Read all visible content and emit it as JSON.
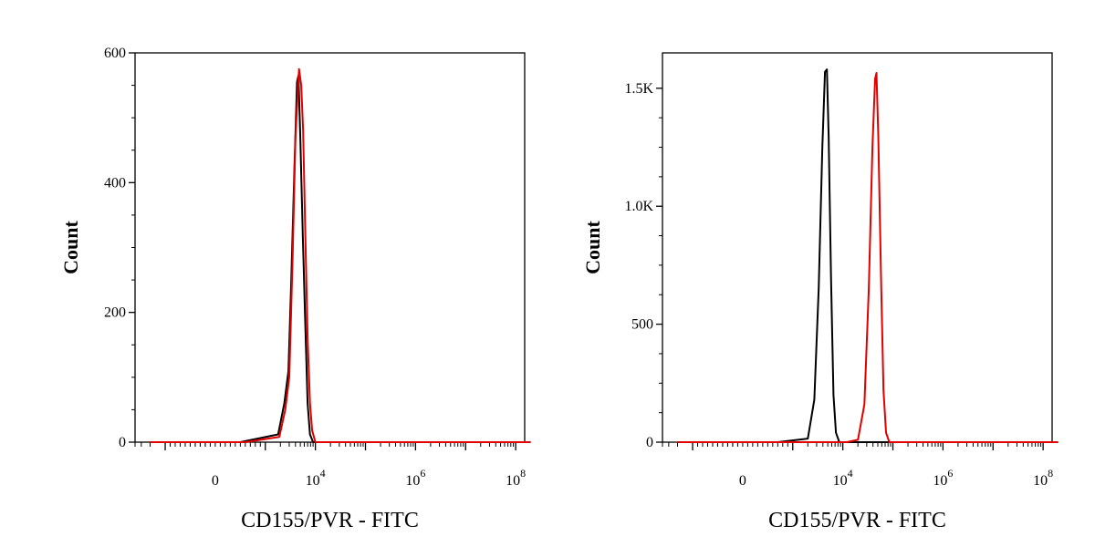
{
  "chart_data": [
    {
      "type": "line",
      "title": "",
      "xlabel": "CD155/PVR - FITC",
      "ylabel": "Count",
      "xscale": "biexponential",
      "xticks": [
        {
          "base": "0",
          "exp": ""
        },
        {
          "base": "10",
          "exp": "4"
        },
        {
          "base": "10",
          "exp": "6"
        },
        {
          "base": "10",
          "exp": "8"
        }
      ],
      "yticks": [
        "0",
        "200",
        "400",
        "600"
      ],
      "yticks_values": [
        0,
        200,
        400,
        600
      ],
      "ylim": [
        0,
        600
      ],
      "grid": false,
      "legend": "none",
      "series": [
        {
          "color": "#000000",
          "points": [
            [
              -2000,
              0
            ],
            [
              500,
              0
            ],
            [
              1800,
              12
            ],
            [
              2400,
              60
            ],
            [
              2900,
              110
            ],
            [
              3300,
              250
            ],
            [
              3800,
              420
            ],
            [
              4300,
              555
            ],
            [
              4600,
              565
            ],
            [
              5000,
              470
            ],
            [
              5600,
              320
            ],
            [
              6300,
              180
            ],
            [
              7000,
              60
            ],
            [
              7800,
              12
            ],
            [
              9000,
              0
            ],
            [
              10000000,
              0
            ],
            [
              200000000,
              0
            ]
          ]
        },
        {
          "color": "#e00000",
          "points": [
            [
              -2000,
              0
            ],
            [
              600,
              0
            ],
            [
              1900,
              8
            ],
            [
              2500,
              50
            ],
            [
              3000,
              100
            ],
            [
              3500,
              280
            ],
            [
              4000,
              470
            ],
            [
              4700,
              575
            ],
            [
              5200,
              550
            ],
            [
              5700,
              480
            ],
            [
              6300,
              320
            ],
            [
              7000,
              160
            ],
            [
              7800,
              60
            ],
            [
              8600,
              18
            ],
            [
              10000,
              0
            ],
            [
              10000000,
              0
            ],
            [
              200000000,
              0
            ]
          ]
        }
      ]
    },
    {
      "type": "line",
      "title": "",
      "xlabel": "CD155/PVR - FITC",
      "ylabel": "Count",
      "xscale": "biexponential",
      "xticks": [
        {
          "base": "0",
          "exp": ""
        },
        {
          "base": "10",
          "exp": "4"
        },
        {
          "base": "10",
          "exp": "6"
        },
        {
          "base": "10",
          "exp": "8"
        }
      ],
      "yticks": [
        "0",
        "500",
        "1.0K",
        "1.5K"
      ],
      "yticks_values": [
        0,
        500,
        1000,
        1500
      ],
      "ylim": [
        0,
        1650
      ],
      "grid": false,
      "legend": "none",
      "series": [
        {
          "color": "#000000",
          "points": [
            [
              -2000,
              0
            ],
            [
              700,
              0
            ],
            [
              2000,
              15
            ],
            [
              2700,
              180
            ],
            [
              3300,
              650
            ],
            [
              3900,
              1250
            ],
            [
              4400,
              1570
            ],
            [
              4800,
              1580
            ],
            [
              5200,
              1300
            ],
            [
              5800,
              700
            ],
            [
              6500,
              200
            ],
            [
              7300,
              40
            ],
            [
              8500,
              0
            ],
            [
              10000000,
              0
            ],
            [
              200000000,
              0
            ]
          ]
        },
        {
          "color": "#e00000",
          "points": [
            [
              -2000,
              0
            ],
            [
              12000,
              0
            ],
            [
              20000,
              10
            ],
            [
              27000,
              160
            ],
            [
              33000,
              650
            ],
            [
              39000,
              1250
            ],
            [
              44000,
              1540
            ],
            [
              47000,
              1565
            ],
            [
              51000,
              1300
            ],
            [
              58000,
              700
            ],
            [
              65000,
              220
            ],
            [
              73000,
              40
            ],
            [
              85000,
              0
            ],
            [
              10000000,
              0
            ],
            [
              200000000,
              0
            ]
          ]
        }
      ]
    }
  ]
}
